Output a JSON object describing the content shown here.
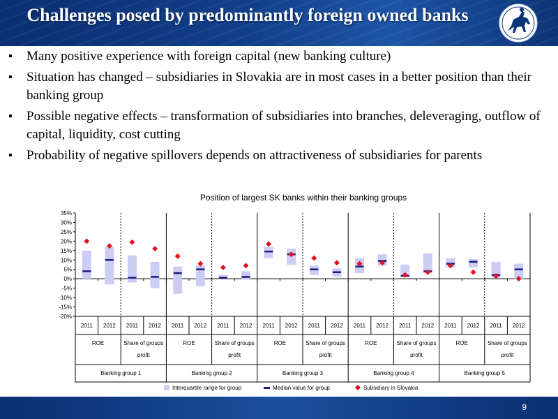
{
  "slide": {
    "title": "Challenges posed by predominantly foreign owned banks",
    "logo_icon": "horse-rider-seal-icon",
    "page_number": "9",
    "colors": {
      "header": "#0d3478",
      "footer": "#0d3478"
    }
  },
  "bullets": [
    "Many positive experience with foreign capital (new banking culture)",
    "Situation has changed – subsidiaries in Slovakia are in most cases in a better position than their banking group",
    "Possible negative effects – transformation of subsidiaries into branches, deleveraging, outflow of capital, liquidity, cost cutting",
    "Probability of negative spillovers depends on attractiveness of subsidiaries for parents"
  ],
  "chart_data": {
    "type": "box-range",
    "title": "Position of largest SK banks within their banking groups",
    "ylim": [
      -20,
      35
    ],
    "yticks": [
      "35%",
      "30%",
      "25%",
      "20%",
      "15%",
      "10%",
      "5%",
      "0%",
      "-5%",
      "-10%",
      "-15%",
      "-20%"
    ],
    "ytick_values": [
      35,
      30,
      25,
      20,
      15,
      10,
      5,
      0,
      -5,
      -10,
      -15,
      -20
    ],
    "year_labels": [
      "2011",
      "2012"
    ],
    "metric_labels": [
      "ROE",
      "Share of groups",
      "profit"
    ],
    "groups": [
      "Banking group 1",
      "Banking group 2",
      "Banking group 3",
      "Banking group 4",
      "Banking group 5"
    ],
    "legend": [
      "Interquartile range for group",
      "Median value for group",
      "Subsidiary in Slovakia"
    ],
    "colors": {
      "iqr": "#ccccf5",
      "median": "#1a1a80",
      "subsidiary": "#e0141e"
    },
    "points": [
      {
        "group": 1,
        "metric": "ROE",
        "year": "2011",
        "iqr": [
          0,
          15
        ],
        "median": 4,
        "subsidiary": 20
      },
      {
        "group": 1,
        "metric": "ROE",
        "year": "2012",
        "iqr": [
          -3,
          17
        ],
        "median": 10,
        "subsidiary": 17.5
      },
      {
        "group": 1,
        "metric": "Share",
        "year": "2011",
        "iqr": [
          -2,
          12.5
        ],
        "median": 0.5,
        "subsidiary": 19.5
      },
      {
        "group": 1,
        "metric": "Share",
        "year": "2012",
        "iqr": [
          -5,
          9
        ],
        "median": 1,
        "subsidiary": 16
      },
      {
        "group": 2,
        "metric": "ROE",
        "year": "2011",
        "iqr": [
          -8,
          6.5
        ],
        "median": 3,
        "subsidiary": 12
      },
      {
        "group": 2,
        "metric": "ROE",
        "year": "2012",
        "iqr": [
          -4,
          7
        ],
        "median": 5,
        "subsidiary": 8
      },
      {
        "group": 2,
        "metric": "Share",
        "year": "2011",
        "iqr": [
          0,
          2
        ],
        "median": 0.5,
        "subsidiary": 6
      },
      {
        "group": 2,
        "metric": "Share",
        "year": "2012",
        "iqr": [
          -0.5,
          4
        ],
        "median": 1,
        "subsidiary": 7
      },
      {
        "group": 3,
        "metric": "ROE",
        "year": "2011",
        "iqr": [
          11,
          17
        ],
        "median": 14.5,
        "subsidiary": 18.5
      },
      {
        "group": 3,
        "metric": "ROE",
        "year": "2012",
        "iqr": [
          7.5,
          16
        ],
        "median": 13,
        "subsidiary": 13
      },
      {
        "group": 3,
        "metric": "Share",
        "year": "2011",
        "iqr": [
          2,
          7
        ],
        "median": 5,
        "subsidiary": 11
      },
      {
        "group": 3,
        "metric": "Share",
        "year": "2012",
        "iqr": [
          1,
          5.5
        ],
        "median": 3.5,
        "subsidiary": 8.5
      },
      {
        "group": 4,
        "metric": "ROE",
        "year": "2011",
        "iqr": [
          3,
          11
        ],
        "median": 6.5,
        "subsidiary": 8
      },
      {
        "group": 4,
        "metric": "ROE",
        "year": "2012",
        "iqr": [
          7,
          13
        ],
        "median": 9.5,
        "subsidiary": 8.5
      },
      {
        "group": 4,
        "metric": "Share",
        "year": "2011",
        "iqr": [
          1,
          7.5
        ],
        "median": 1.5,
        "subsidiary": 2
      },
      {
        "group": 4,
        "metric": "Share",
        "year": "2012",
        "iqr": [
          3,
          13.5
        ],
        "median": 4,
        "subsidiary": 3.5
      },
      {
        "group": 5,
        "metric": "ROE",
        "year": "2011",
        "iqr": [
          6,
          11
        ],
        "median": 8,
        "subsidiary": 7
      },
      {
        "group": 5,
        "metric": "ROE",
        "year": "2012",
        "iqr": [
          6,
          10.5
        ],
        "median": 9,
        "subsidiary": 3.5
      },
      {
        "group": 5,
        "metric": "Share",
        "year": "2011",
        "iqr": [
          0.5,
          9
        ],
        "median": 2,
        "subsidiary": 1.5
      },
      {
        "group": 5,
        "metric": "Share",
        "year": "2012",
        "iqr": [
          0,
          8
        ],
        "median": 5,
        "subsidiary": 0
      }
    ]
  }
}
